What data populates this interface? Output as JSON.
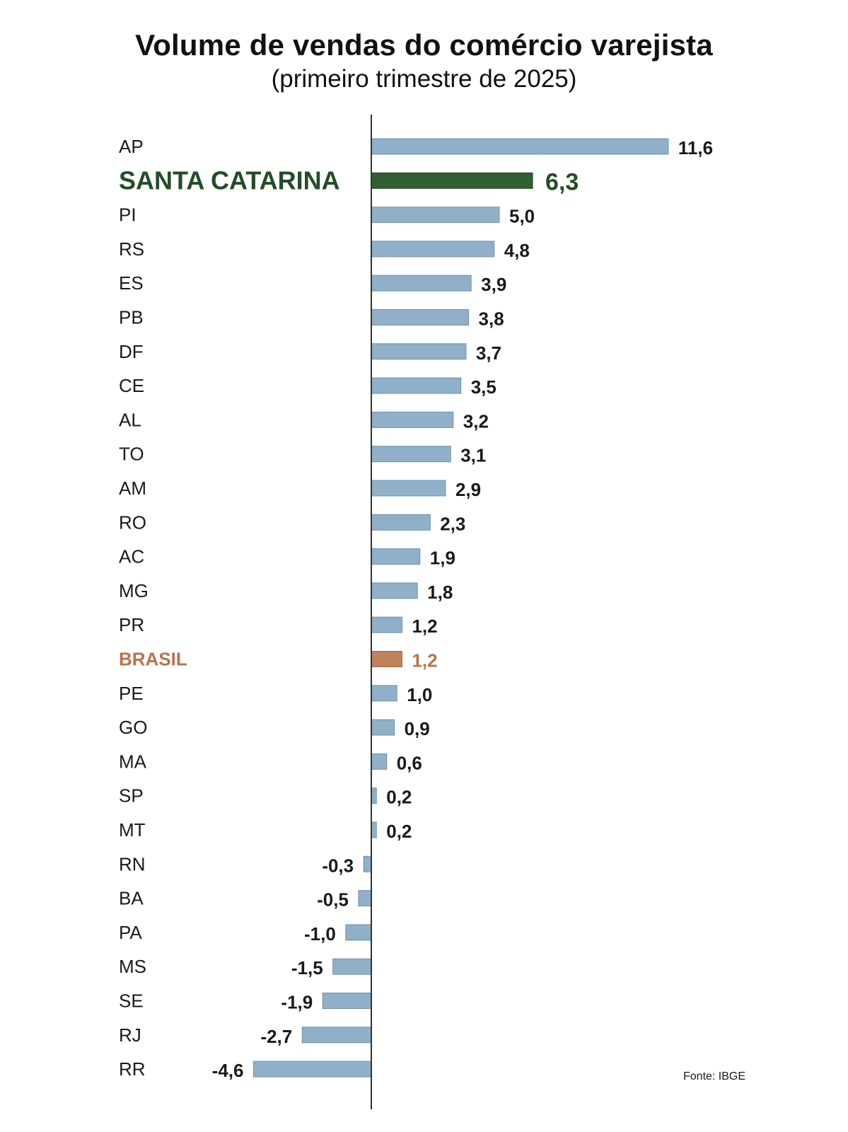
{
  "header": {
    "title": "Volume de vendas do comércio varejista",
    "subtitle": "(primeiro trimestre de 2025)"
  },
  "source": "Fonte: IBGE",
  "colors": {
    "default_bar": "#8fb0c8",
    "default_bar_edge": "#6f93ad",
    "highlight_bar": "#2f5f32",
    "highlight_text": "#234d26",
    "brasil_bar": "#c0825a",
    "brasil_text": "#b8734a",
    "axis": "#333333",
    "text": "#1a1a1a"
  },
  "chart_data": {
    "type": "bar",
    "orientation": "horizontal",
    "title": "Volume de vendas do comércio varejista",
    "subtitle": "(primeiro trimestre de 2025)",
    "categories": [
      "AP",
      "SANTA CATARINA",
      "PI",
      "RS",
      "ES",
      "PB",
      "DF",
      "CE",
      "AL",
      "TO",
      "AM",
      "RO",
      "AC",
      "MG",
      "PR",
      "BRASIL",
      "PE",
      "GO",
      "MA",
      "SP",
      "MT",
      "RN",
      "BA",
      "PA",
      "MS",
      "SE",
      "RJ",
      "RR"
    ],
    "values": [
      11.6,
      6.3,
      5.0,
      4.8,
      3.9,
      3.8,
      3.7,
      3.5,
      3.2,
      3.1,
      2.9,
      2.3,
      1.9,
      1.8,
      1.2,
      1.2,
      1.0,
      0.9,
      0.6,
      0.2,
      0.2,
      -0.3,
      -0.5,
      -1.0,
      -1.5,
      -1.9,
      -2.7,
      -4.6
    ],
    "value_labels": [
      "11,6",
      "6,3",
      "5,0",
      "4,8",
      "3,9",
      "3,8",
      "3,7",
      "3,5",
      "3,2",
      "3,1",
      "2,9",
      "2,3",
      "1,9",
      "1,8",
      "1,2",
      "1,2",
      "1,0",
      "0,9",
      "0,6",
      "0,2",
      "0,2",
      "-0,3",
      "-0,5",
      "-1,0",
      "-1,5",
      "-1,9",
      "-2,7",
      "-4,6"
    ],
    "highlight": {
      "SANTA CATARINA": "highlight",
      "BRASIL": "brasil"
    },
    "xlim": [
      -4.6,
      11.6
    ],
    "grid": false,
    "legend": "none",
    "xlabel": "",
    "ylabel": ""
  }
}
